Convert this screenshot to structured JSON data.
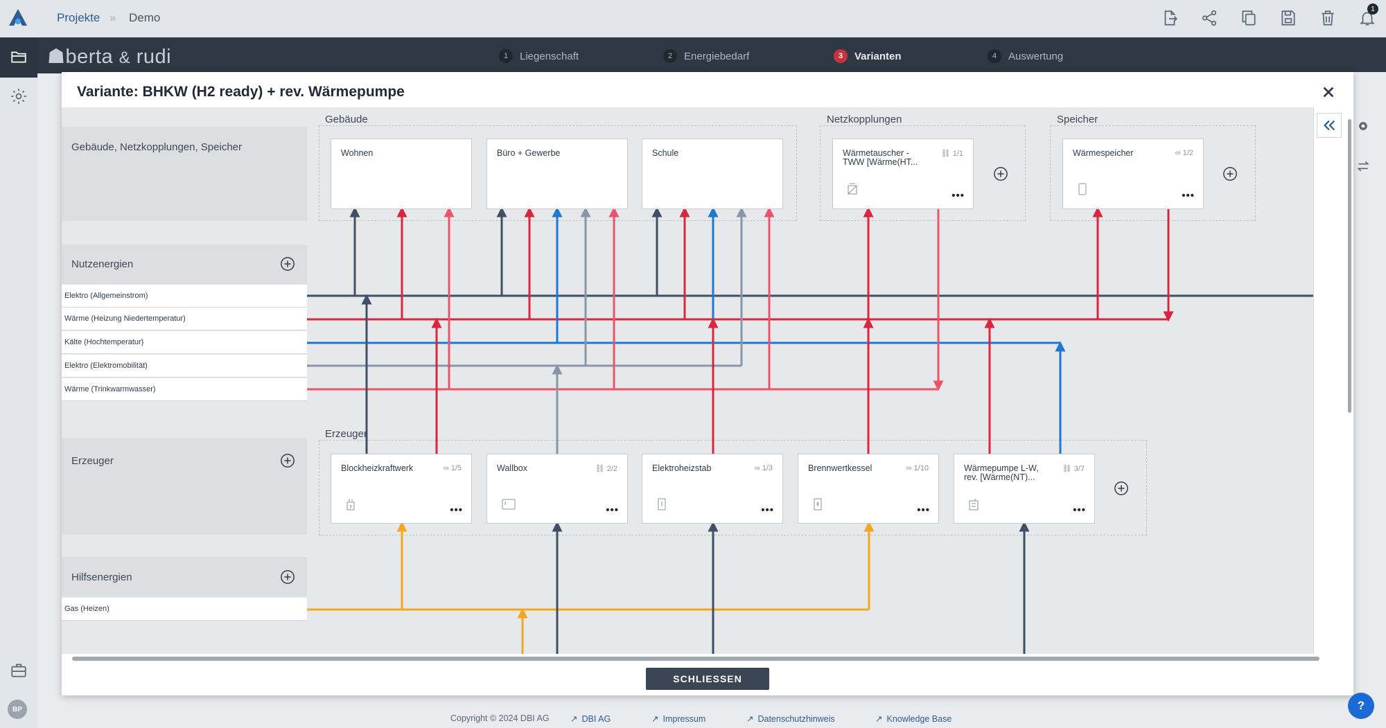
{
  "breadcrumb": {
    "projects": "Projekte",
    "separator": "»",
    "current": "Demo"
  },
  "notifications": {
    "count": "1"
  },
  "brand": {
    "name_a": "berta",
    "amp": "&",
    "name_b": "rudi"
  },
  "steps": [
    {
      "num": "1",
      "label": "Liegenschaft"
    },
    {
      "num": "2",
      "label": "Energiebedarf"
    },
    {
      "num": "3",
      "label": "Varianten"
    },
    {
      "num": "4",
      "label": "Auswertung"
    }
  ],
  "active_step": "3",
  "modal": {
    "title": "Variante: BHKW (H2 ready) + rev. Wärmepumpe",
    "close_button": "SCHLIESSEN"
  },
  "sections": {
    "gebaeude_netz_speicher": "Gebäude, Netzkopplungen, Speicher",
    "nutzenergien": "Nutzenergien",
    "erzeuger": "Erzeuger",
    "hilfsenergien": "Hilfsenergien"
  },
  "nutzenergien": [
    "Elektro (Allgemeinstrom)",
    "Wärme (Heizung Niedertemperatur)",
    "Kälte (Hochtemperatur)",
    "Elektro (Elektromobilität)",
    "Wärme (Trinkwarmwasser)"
  ],
  "hilfsenergien": [
    "Gas (Heizen)"
  ],
  "groups": {
    "gebaeude": "Gebäude",
    "netzkopplungen": "Netzkopplungen",
    "speicher": "Speicher",
    "erzeuger": "Erzeuger"
  },
  "gebaeude": [
    "Wohnen",
    "Büro + Gewerbe",
    "Schule"
  ],
  "netzkopplungen": [
    {
      "label": "Wärmetauscher - TWW [Wärme(HT...",
      "count": "1/1"
    }
  ],
  "speicher": [
    {
      "label": "Wärmespeicher",
      "count": "1/2"
    }
  ],
  "erzeuger": [
    {
      "label": "Blockheizkraftwerk",
      "count": "1/5"
    },
    {
      "label": "Wallbox",
      "count": "2/2"
    },
    {
      "label": "Elektroheizstab",
      "count": "1/3"
    },
    {
      "label": "Brennwertkessel",
      "count": "1/10"
    },
    {
      "label": "Wärmepumpe L-W, rev. [Wärme(NT)...",
      "count": "3/7"
    }
  ],
  "footer": {
    "copyright": "Copyright © 2024 DBI AG",
    "links": [
      "DBI AG",
      "Impressum",
      "Datenschutzhinweis",
      "Knowledge Base"
    ]
  },
  "colors": {
    "elektro": "#3e4f66",
    "waerme_nt": "#d7263d",
    "kaelte": "#1e78d2",
    "elektromobil": "#8797ab",
    "tww": "#e8566b",
    "gas": "#f5a623"
  },
  "help_label": "?"
}
